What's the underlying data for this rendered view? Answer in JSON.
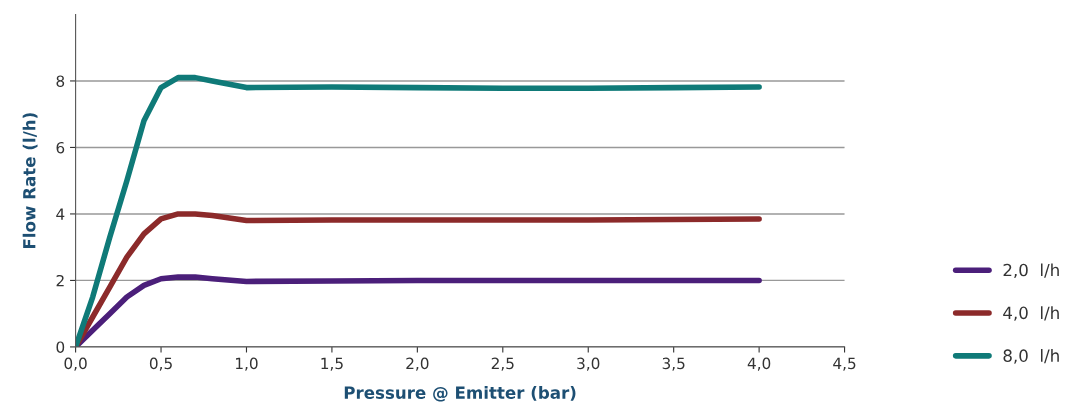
{
  "chart_data": {
    "type": "line",
    "xlabel": "Pressure @ Emitter (bar)",
    "ylabel": "Flow Rate (l/h)",
    "xlim": [
      0,
      4.5
    ],
    "xticks": [
      {
        "value": 0,
        "label": "0,0"
      },
      {
        "value": 0.5,
        "label": "0,5"
      },
      {
        "value": 1,
        "label": "1,0"
      },
      {
        "value": 1.5,
        "label": "1,5"
      },
      {
        "value": 2,
        "label": "2,0"
      },
      {
        "value": 2.5,
        "label": "2,5"
      },
      {
        "value": 3,
        "label": "3,0"
      },
      {
        "value": 3.5,
        "label": "3,5"
      },
      {
        "value": 4,
        "label": "4,0"
      },
      {
        "value": 4.5,
        "label": "4,5"
      }
    ],
    "ylim": [
      0,
      10
    ],
    "yticks": [
      0,
      2,
      4,
      6,
      8
    ],
    "grid": "y",
    "legend": "bottom right",
    "marker": "none",
    "line_style": "solid",
    "x": [
      0,
      0.1,
      0.2,
      0.3,
      0.4,
      0.5,
      0.6,
      0.7,
      0.8,
      1.0,
      1.5,
      2.0,
      2.5,
      3.0,
      3.5,
      4.0
    ],
    "series": [
      {
        "name": "2,0  l/h",
        "color": "#4b1f7a",
        "values": [
          0,
          0.5,
          1.0,
          1.5,
          1.85,
          2.05,
          2.1,
          2.1,
          2.05,
          1.97,
          1.98,
          2.0,
          2.0,
          2.0,
          2.0,
          2.0
        ]
      },
      {
        "name": "4,0  l/h",
        "color": "#8c2a2a",
        "values": [
          0,
          0.9,
          1.8,
          2.7,
          3.4,
          3.85,
          4.0,
          4.0,
          3.95,
          3.8,
          3.82,
          3.82,
          3.82,
          3.82,
          3.83,
          3.85
        ]
      },
      {
        "name": "8,0  l/h",
        "color": "#0f7a78",
        "values": [
          0,
          1.5,
          3.3,
          5.0,
          6.8,
          7.8,
          8.1,
          8.1,
          8.0,
          7.8,
          7.82,
          7.8,
          7.78,
          7.78,
          7.8,
          7.82
        ]
      }
    ]
  }
}
